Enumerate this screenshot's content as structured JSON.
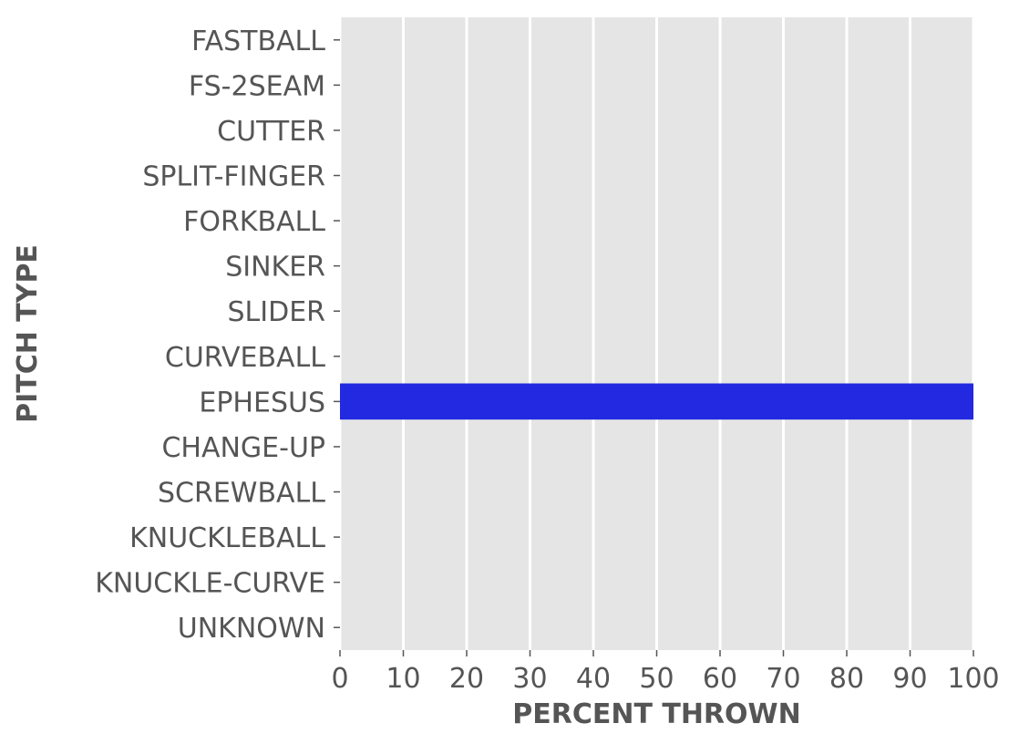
{
  "chart_data": {
    "type": "bar",
    "orientation": "horizontal",
    "categories": [
      "FASTBALL",
      "FS-2SEAM",
      "CUTTER",
      "SPLIT-FINGER",
      "FORKBALL",
      "SINKER",
      "SLIDER",
      "CURVEBALL",
      "EPHESUS",
      "CHANGE-UP",
      "SCREWBALL",
      "KNUCKLEBALL",
      "KNUCKLE-CURVE",
      "UNKNOWN"
    ],
    "values": [
      0,
      0,
      0,
      0,
      0,
      0,
      0,
      0,
      100,
      0,
      0,
      0,
      0,
      0
    ],
    "xlabel": "PERCENT THROWN",
    "ylabel": "PITCH TYPE",
    "xlim": [
      0,
      100
    ],
    "xticks": [
      0,
      10,
      20,
      30,
      40,
      50,
      60,
      70,
      80,
      90,
      100
    ],
    "grid": true,
    "grid_axis": "x",
    "colors": {
      "bar": "#2229e0",
      "plot_background": "#e5e5e5",
      "grid": "#ffffff",
      "text": "#555555",
      "tick": "#555555"
    }
  }
}
